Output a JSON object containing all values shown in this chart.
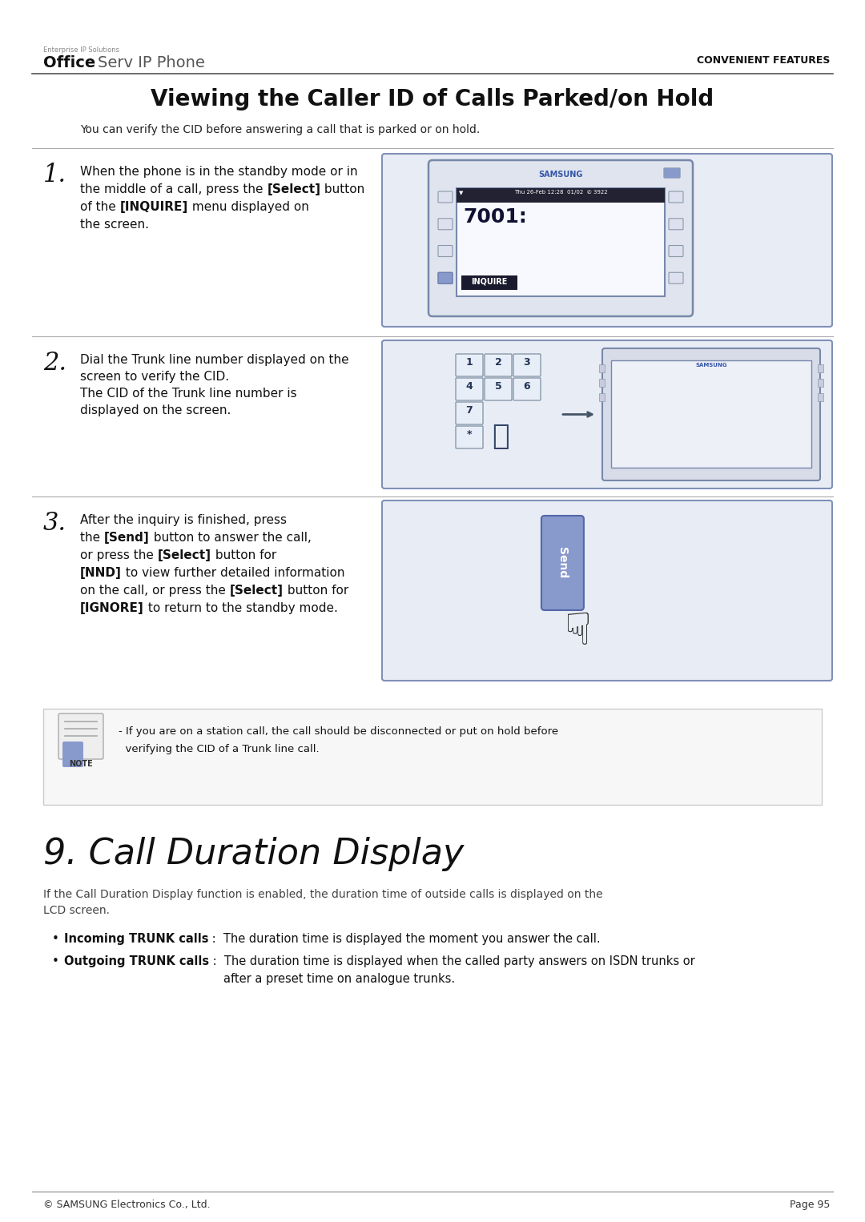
{
  "bg_color": "#ffffff",
  "header_logo_small": "Enterprise IP Solutions",
  "header_logo_office": "Office",
  "header_logo_serv": "Serv IP Phone",
  "header_right": "CONVENIENT FEATURES",
  "section_title": "Viewing the Caller ID of Calls Parked/on Hold",
  "section_intro": "You can verify the CID before answering a call that is parked or on hold.",
  "step1_num": "1.",
  "step1_lines": [
    "When the phone is in the standby mode or in",
    "the middle of a call, press the [Select] button",
    "of the [INQUIRE] menu displayed on",
    "the screen."
  ],
  "step2_num": "2.",
  "step2_lines": [
    "Dial the Trunk line number displayed on the",
    "screen to verify the CID.",
    "The CID of the Trunk line number is",
    "displayed on the screen."
  ],
  "step3_num": "3.",
  "step3_lines": [
    "After the inquiry is finished, press",
    "the [Send] button to answer the call,",
    "or press the [Select] button for",
    "[NND] to view further detailed information",
    "on the call, or press the [Select] button for",
    "[IGNORE] to return to the standby mode."
  ],
  "note_line1": "- If you are on a station call, the call should be disconnected or put on hold before",
  "note_line2": "  verifying the CID of a Trunk line call.",
  "chapter_title": "9. Call Duration Display",
  "chapter_intro1": "If the Call Duration Display function is enabled, the duration time of outside calls is displayed on the",
  "chapter_intro2": "LCD screen.",
  "bullet1_bold": "Incoming TRUNK calls",
  "bullet1_rest": " :  The duration time is displayed the moment you answer the call.",
  "bullet2_bold": "Outgoing TRUNK calls",
  "bullet2_rest": " :  The duration time is displayed when the called party answers on ISDN trunks or",
  "bullet2_rest2": "after a preset time on analogue trunks.",
  "footer_left": "© SAMSUNG Electronics Co., Ltd.",
  "footer_right": "Page 95",
  "border_color": "#8090b8",
  "step_fill": "#ffffff",
  "img_fill": "#e8ecf5",
  "note_fill": "#f7f7f7",
  "note_border": "#cccccc"
}
